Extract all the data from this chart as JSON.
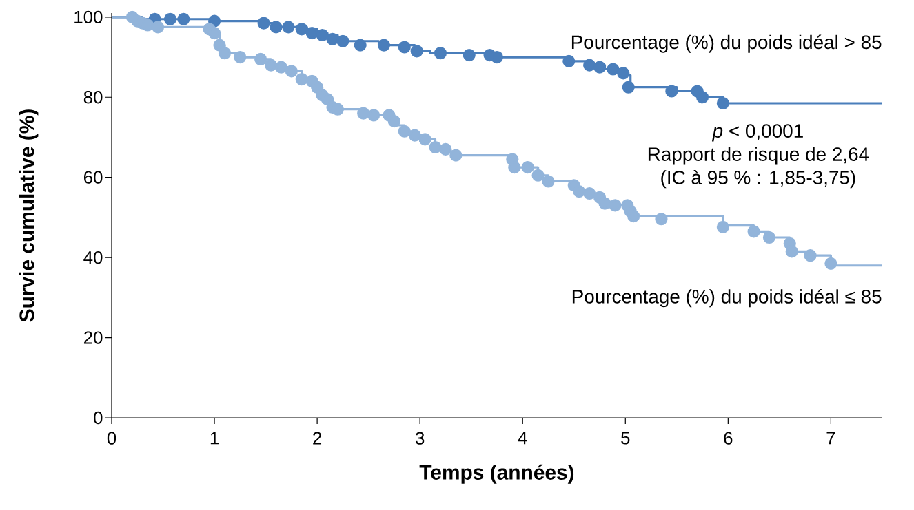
{
  "chart_data": {
    "type": "step",
    "xlabel": "Temps (années)",
    "ylabel": "Survie cumulative (%)",
    "xlim": [
      0,
      7.5
    ],
    "ylim": [
      0,
      101
    ],
    "xticks": [
      0,
      1,
      2,
      3,
      4,
      5,
      6,
      7
    ],
    "yticks": [
      0,
      20,
      40,
      60,
      80,
      100
    ],
    "annotations": [
      "*p* < 0,0001",
      "Rapport de risque de 2,64",
      "(IC à 95 % : 1,85-3,75)"
    ],
    "series": [
      {
        "name": "Pourcentage (%) du poids idéal > 85",
        "color": "#4a7ebb",
        "marker": "none",
        "x": [
          0,
          0.3,
          1.0,
          1.5,
          1.6,
          1.9,
          2.0,
          2.1,
          2.2,
          2.3,
          2.6,
          2.95,
          3.1,
          3.7,
          4.45,
          4.65,
          4.8,
          5.0,
          5.05,
          5.5,
          5.75,
          5.95,
          7.5
        ],
        "values": [
          100,
          99.5,
          99,
          98.5,
          97.5,
          97,
          96,
          95.5,
          94.5,
          94,
          93,
          91.5,
          91,
          90,
          89,
          88,
          87,
          85.5,
          82.5,
          81.5,
          80,
          78.5,
          78.5
        ]
      },
      {
        "type": "scatter",
        "color": "#4a7ebb",
        "marker": "circle",
        "x": [
          0.42,
          0.57,
          0.7,
          1.0,
          1.48,
          1.6,
          1.72,
          1.85,
          1.95,
          2.05,
          2.15,
          2.25,
          2.42,
          2.65,
          2.85,
          2.97,
          3.2,
          3.48,
          3.68,
          3.75,
          4.45,
          4.65,
          4.75,
          4.88,
          4.98,
          5.03,
          5.45,
          5.7,
          5.75,
          5.95
        ],
        "values": [
          99.5,
          99.5,
          99.5,
          99,
          98.5,
          97.5,
          97.5,
          97,
          96,
          95.5,
          94.5,
          94,
          93,
          93,
          92.5,
          91.5,
          91,
          90.5,
          90.5,
          90,
          89,
          88,
          87.5,
          87,
          86,
          82.5,
          81.5,
          81.5,
          80,
          78.5
        ]
      },
      {
        "name": "Pourcentage (%) du poids idéal ≤ 85",
        "color": "#92b4da",
        "marker": "none",
        "x": [
          0,
          0.2,
          0.25,
          0.3,
          0.35,
          0.45,
          0.95,
          1.0,
          1.05,
          1.1,
          1.25,
          1.45,
          1.55,
          1.65,
          1.75,
          1.85,
          1.95,
          2.0,
          2.05,
          2.1,
          2.15,
          2.2,
          2.45,
          2.55,
          2.7,
          2.75,
          2.85,
          2.95,
          3.05,
          3.15,
          3.25,
          3.35,
          3.9,
          3.92,
          4.15,
          4.25,
          4.5,
          4.55,
          4.65,
          4.75,
          4.8,
          4.9,
          5.05,
          5.08,
          5.95,
          6.25,
          6.4,
          6.6,
          6.62,
          6.8,
          7.0,
          7.5
        ],
        "values": [
          100,
          100,
          99,
          98.5,
          98,
          97.5,
          97,
          96,
          93,
          91,
          90,
          89.5,
          88,
          87.5,
          86.5,
          84.5,
          84,
          82.5,
          80.5,
          79.5,
          77.5,
          77,
          76,
          75.5,
          74,
          73,
          71.5,
          70.5,
          69.5,
          67.5,
          66.5,
          65.5,
          64,
          62.5,
          60.5,
          59,
          58,
          56.5,
          56,
          55,
          53.5,
          53,
          51.5,
          50.3,
          48,
          46.5,
          45,
          43.5,
          41.5,
          40.5,
          38,
          38
        ]
      },
      {
        "type": "scatter",
        "color": "#92b4da",
        "marker": "circle",
        "x": [
          0.2,
          0.25,
          0.3,
          0.35,
          0.45,
          0.95,
          1.0,
          1.05,
          1.1,
          1.25,
          1.45,
          1.55,
          1.65,
          1.75,
          1.85,
          1.95,
          2.0,
          2.05,
          2.1,
          2.15,
          2.2,
          2.45,
          2.55,
          2.7,
          2.75,
          2.85,
          2.95,
          3.05,
          3.15,
          3.25,
          3.35,
          3.9,
          3.92,
          4.05,
          4.15,
          4.25,
          4.5,
          4.55,
          4.65,
          4.75,
          4.8,
          4.9,
          5.02,
          5.05,
          5.08,
          5.35,
          5.95,
          6.25,
          6.4,
          6.6,
          6.62,
          6.8,
          7.0
        ],
        "values": [
          100,
          99,
          98.5,
          98,
          97.5,
          97,
          96,
          93,
          91,
          90,
          89.5,
          88,
          87.5,
          86.5,
          84.5,
          84,
          82.5,
          80.5,
          79.5,
          77.5,
          77,
          76,
          75.5,
          75.5,
          74,
          71.5,
          70.5,
          69.5,
          67.5,
          67,
          65.5,
          64.5,
          62.5,
          62.5,
          60.5,
          59,
          58,
          56.5,
          56,
          55,
          53.5,
          53,
          53,
          51.5,
          50.3,
          49.6,
          47.6,
          46.5,
          45,
          43.5,
          41.5,
          40.5,
          38.5
        ]
      }
    ]
  }
}
